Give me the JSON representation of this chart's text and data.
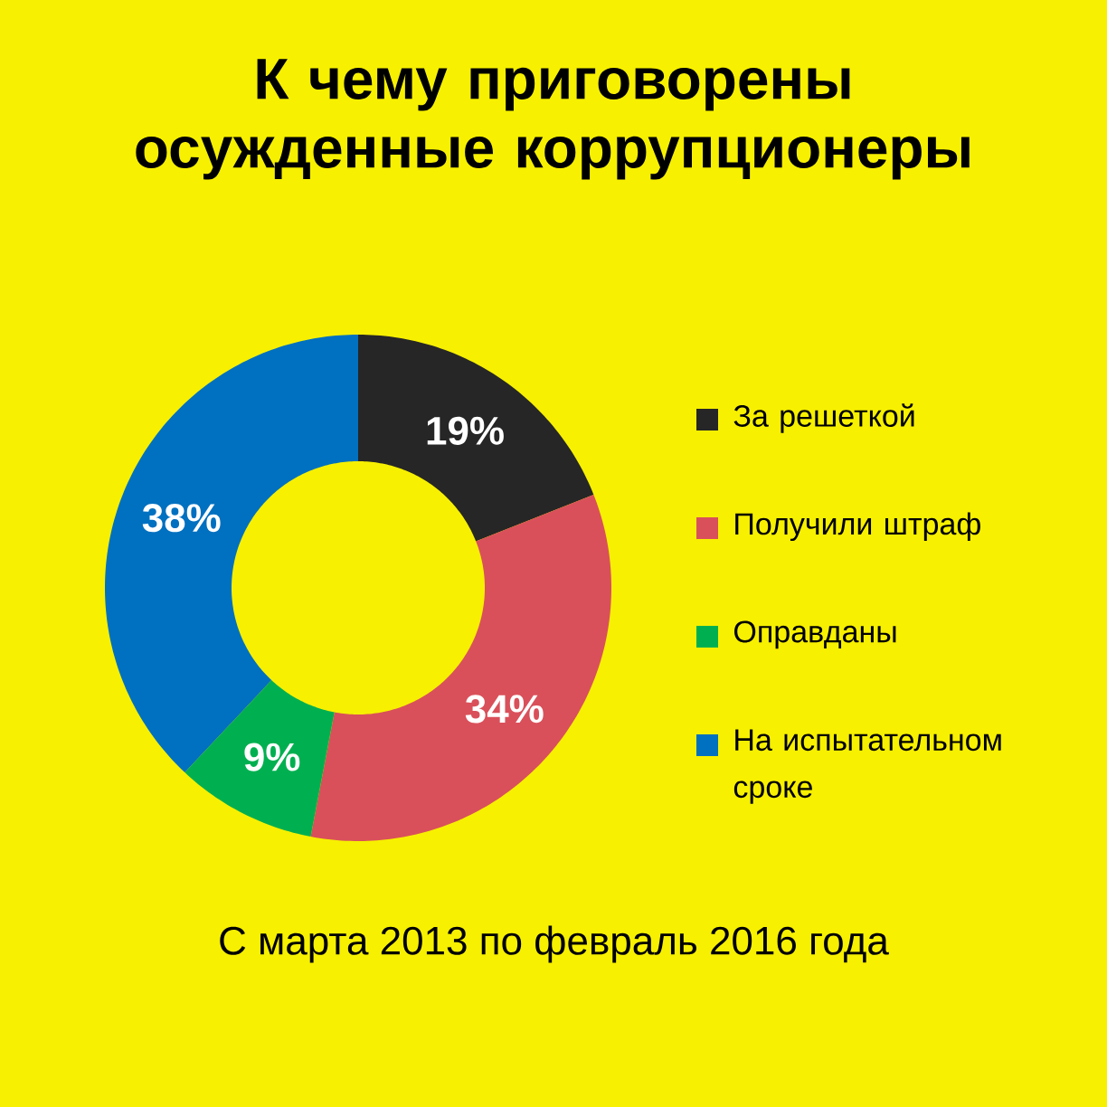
{
  "chart_data": {
    "type": "donut",
    "title": "К чему приговорены осужденные коррупционеры",
    "categories": [
      "За решеткой",
      "Получили штраф",
      "Оправданы",
      "На испытательном сроке"
    ],
    "values": [
      19,
      34,
      9,
      38
    ],
    "colors": [
      "#262626",
      "#d9505a",
      "#00b050",
      "#0070c0"
    ],
    "value_labels": [
      "19%",
      "34%",
      "9%",
      "38%"
    ],
    "legend": "right",
    "annotations": [
      "С марта 2013 по февраль 2016 года"
    ]
  }
}
